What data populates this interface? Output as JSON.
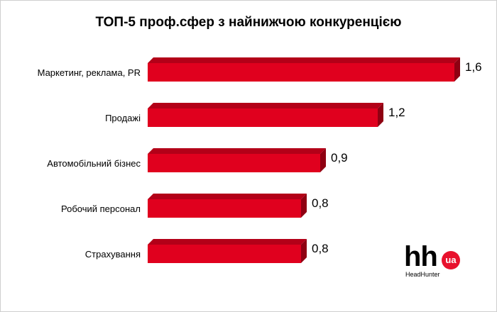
{
  "chart_data": {
    "type": "bar",
    "orientation": "horizontal",
    "title": "ТОП-5 проф.сфер з найнижчою конкуренцією",
    "categories": [
      "Маркетинг, реклама, PR",
      "Продажі",
      "Автомобільний бізнес",
      "Робочий персонал",
      "Страхування"
    ],
    "values": [
      1.6,
      1.2,
      0.9,
      0.8,
      0.8
    ],
    "value_labels": [
      "1,6",
      "1,2",
      "0,9",
      "0,8",
      "0,8"
    ],
    "xlim": [
      0,
      1.6
    ],
    "grid": false,
    "legend": "none",
    "bar_color": "#e0001e",
    "bar_side_color": "#8f0012",
    "bar_top_color": "#b30018"
  },
  "logo": {
    "text": "hh",
    "badge": "ua",
    "subtitle": "HeadHunter"
  }
}
